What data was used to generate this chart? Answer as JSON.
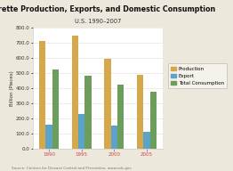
{
  "title": "Cigarette Production, Exports, and Domestic Consumption",
  "subtitle": "U.S. 1990–2007",
  "ylabel": "Billion (Pieces)",
  "source": "Source: Centers for Disease Control and Prevention, www.cdc.gov",
  "categories": [
    "1990",
    "1995",
    "2000",
    "2005"
  ],
  "series": {
    "Production": [
      708,
      745,
      595,
      485
    ],
    "Export": [
      160,
      230,
      150,
      110
    ],
    "Total Consumption": [
      520,
      480,
      425,
      375
    ]
  },
  "colors": {
    "Production": "#D4A84B",
    "Export": "#5BA3C9",
    "Total Consumption": "#6A9E5A"
  },
  "ylim": [
    0,
    800
  ],
  "yticks": [
    0,
    100,
    200,
    300,
    400,
    500,
    600,
    700,
    800
  ],
  "background_color": "#EDE8DC",
  "plot_bg_color": "#FFFFFF",
  "title_fontsize": 5.8,
  "subtitle_fontsize": 4.8,
  "tick_fontsize": 4.0,
  "legend_fontsize": 4.0,
  "ylabel_fontsize": 4.0,
  "source_fontsize": 3.0
}
